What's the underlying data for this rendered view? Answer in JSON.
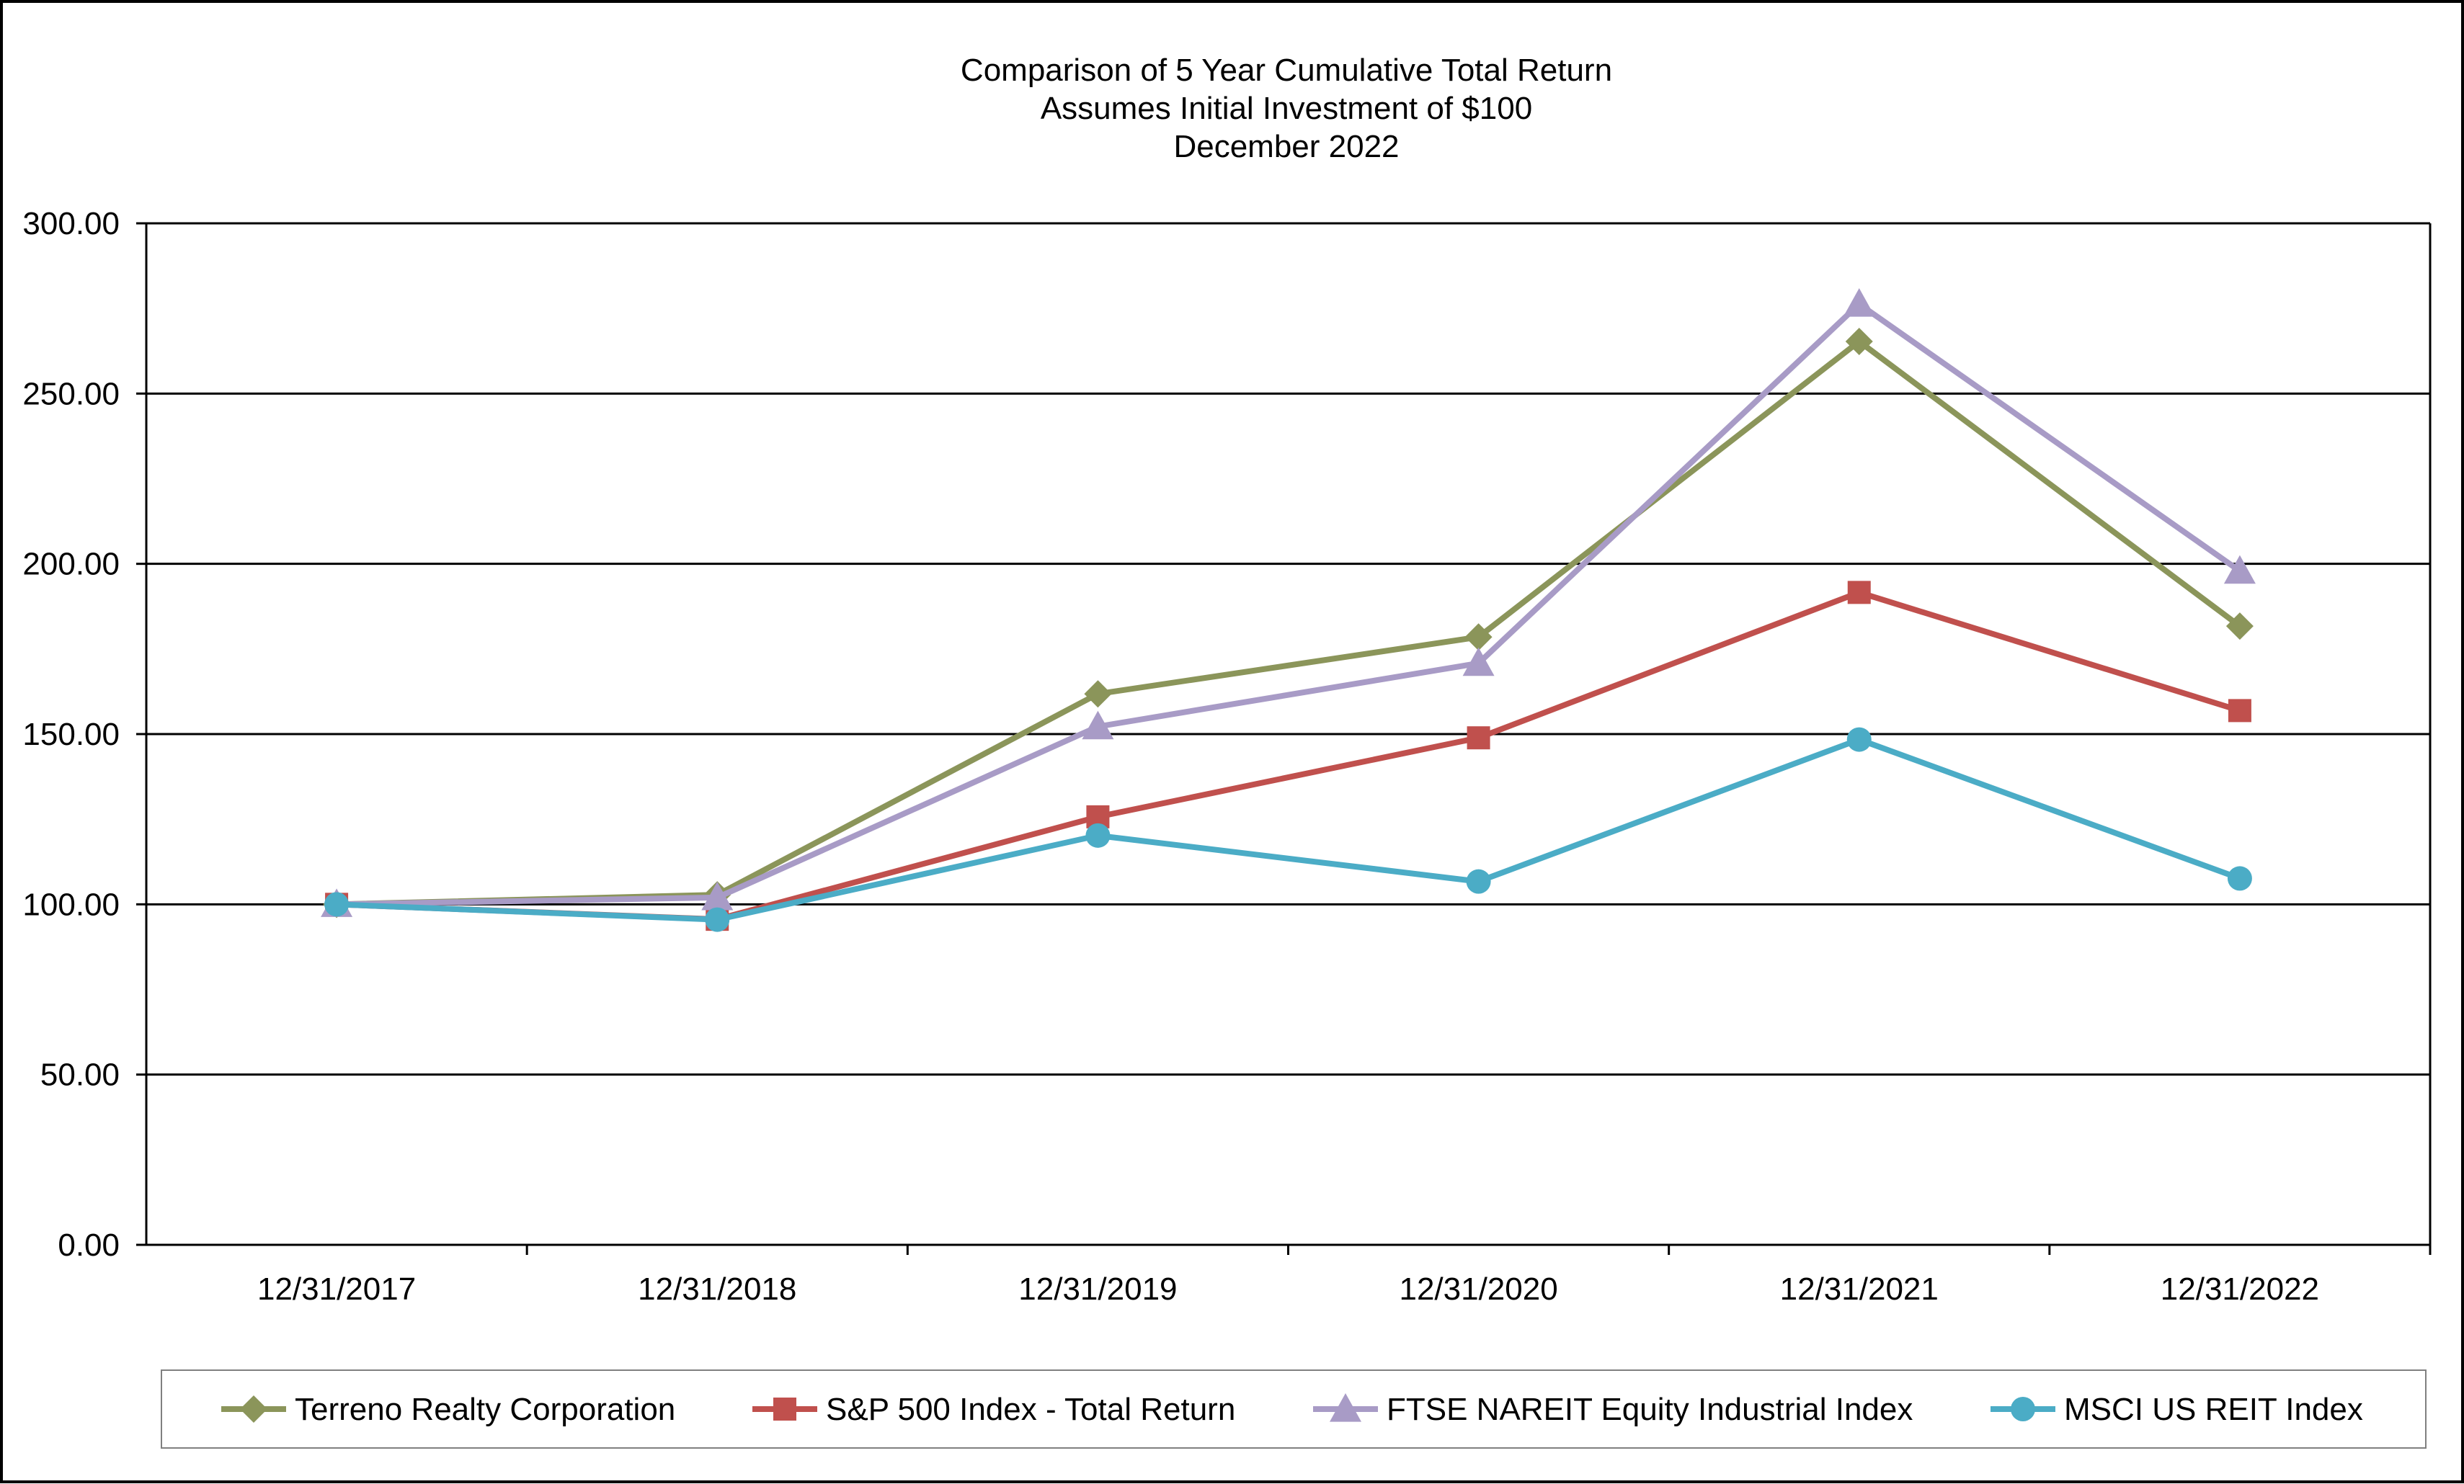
{
  "chart_data": {
    "type": "line",
    "title": "Comparison of 5 Year Cumulative Total Return",
    "subtitle": [
      "Assumes Initial Investment of $100",
      "December 2022"
    ],
    "categories": [
      "12/31/2017",
      "12/31/2018",
      "12/31/2019",
      "12/31/2020",
      "12/31/2021",
      "12/31/2022"
    ],
    "y_ticks": [
      "0.00",
      "50.00",
      "100.00",
      "150.00",
      "200.00",
      "250.00",
      "300.00"
    ],
    "ylim": [
      0,
      300
    ],
    "y_step": 50,
    "xlabel": "",
    "ylabel": "",
    "grid": "horizontal",
    "legend_position": "bottom",
    "series": [
      {
        "name": "Terreno Realty Corporation",
        "color": "#8B955A",
        "marker": "diamond",
        "values": [
          100.0,
          102.8,
          161.8,
          178.5,
          265.3,
          181.7
        ]
      },
      {
        "name": "S&P 500 Index - Total Return",
        "color": "#C0504D",
        "marker": "square",
        "values": [
          100.0,
          95.6,
          125.7,
          148.9,
          191.6,
          156.9
        ]
      },
      {
        "name": "FTSE NAREIT Equity Industrial Index",
        "color": "#A89BC6",
        "marker": "triangle",
        "values": [
          100.0,
          102.0,
          152.2,
          170.8,
          276.3,
          197.9
        ]
      },
      {
        "name": "MSCI US REIT Index",
        "color": "#4BACC6",
        "marker": "circle",
        "values": [
          100.0,
          95.5,
          120.2,
          106.7,
          148.4,
          107.6
        ]
      }
    ]
  }
}
